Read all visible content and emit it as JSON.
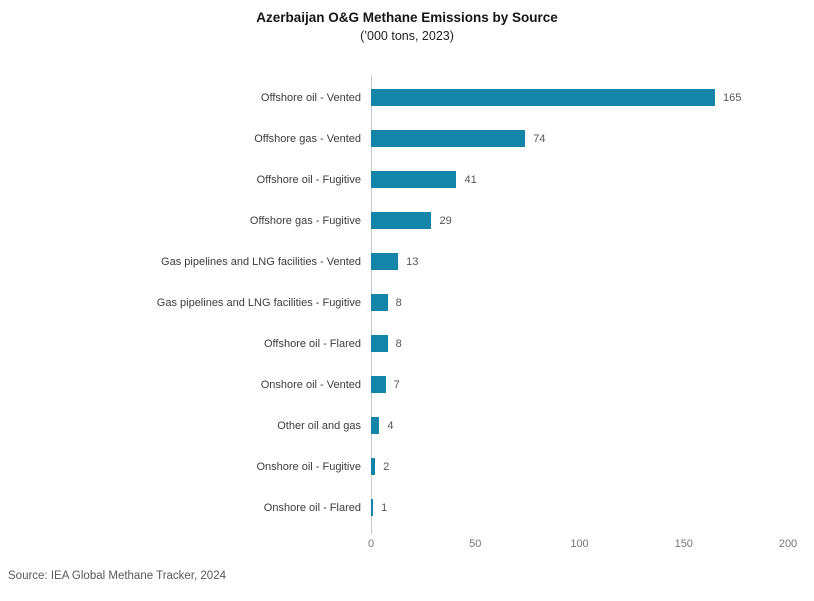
{
  "title": "Azerbaijan O&G Methane Emissions by Source",
  "subtitle": "(’000 tons, 2023)",
  "source": "Source: IEA Global Methane Tracker, 2024",
  "chart_data": {
    "type": "bar",
    "orientation": "horizontal",
    "title": "Azerbaijan O&G Methane Emissions by Source",
    "subtitle": "(’000 tons, 2023)",
    "categories": [
      "Offshore oil - Vented",
      "Offshore gas - Vented",
      "Offshore oil - Fugitive",
      "Offshore gas - Fugitive",
      "Gas pipelines and LNG facilities - Vented",
      "Gas pipelines and LNG facilities - Fugitive",
      "Offshore oil - Flared",
      "Onshore oil - Vented",
      "Other oil and gas",
      "Onshore oil - Fugitive",
      "Onshore oil - Flared"
    ],
    "values": [
      165,
      74,
      41,
      29,
      13,
      8,
      8,
      7,
      4,
      2,
      1
    ],
    "xlim": [
      0,
      200
    ],
    "ticks": [
      0,
      50,
      100,
      150,
      200
    ],
    "xlabel": "",
    "ylabel": "",
    "grid": false,
    "legend": "none",
    "value_labels": true,
    "bar_color": "#1485A9",
    "axis_line_color": "#c9c9c9"
  }
}
